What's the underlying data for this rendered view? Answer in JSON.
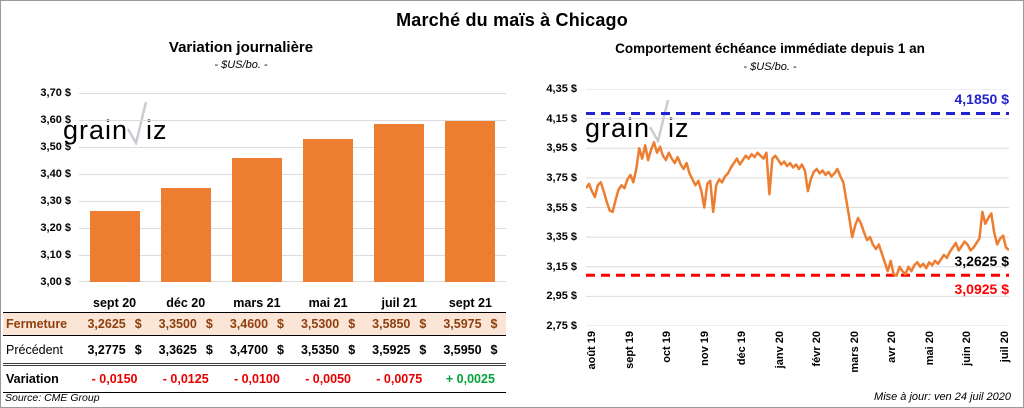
{
  "page": {
    "title": "Marché du maïs à Chicago",
    "source_note": "Source: CME Group",
    "update_note": "Mise à jour: ven 24 juil 2020",
    "watermark": {
      "part1": "grain",
      "part2": "iz"
    }
  },
  "colors": {
    "accent_orange": "#ED7D31",
    "blue_line": "#2222CE",
    "red_line": "#FF0000",
    "negative": "#E60000",
    "positive": "#00A43B",
    "fermeture_bg": "#FBE5D6",
    "fermeture_text": "#8F3F0E",
    "grid": "#DCDCDC",
    "watermark": "#C9CDD2"
  },
  "chart_data": [
    {
      "type": "bar",
      "title": "Variation journalière",
      "subtitle": "- $US/bo. -",
      "categories": [
        "sept 20",
        "déc 20",
        "mars 21",
        "mai 21",
        "juil 21",
        "sept 21"
      ],
      "values": [
        3.2625,
        3.35,
        3.46,
        3.53,
        3.585,
        3.5975
      ],
      "ylim": [
        3.0,
        3.7
      ],
      "ytick_step": 0.1,
      "ytick_labels": [
        "3,70 $",
        "3,60 $",
        "3,50 $",
        "3,40 $",
        "3,30 $",
        "3,20 $",
        "3,10 $",
        "3,00 $"
      ],
      "grid": true,
      "legend": "none"
    },
    {
      "type": "line",
      "title": "Comportement échéance immédiate depuis 1 an",
      "subtitle": "- $US/bo. -",
      "x_labels": [
        "août 19",
        "sept 19",
        "oct 19",
        "nov 19",
        "déc 19",
        "janv 20",
        "févr 20",
        "mars 20",
        "avr 20",
        "mai 20",
        "juin 20",
        "juil 20"
      ],
      "ylim": [
        2.75,
        4.35
      ],
      "ytick_step": 0.2,
      "ytick_labels": [
        "4,35 $",
        "4,15 $",
        "3,95 $",
        "3,75 $",
        "3,55 $",
        "3,35 $",
        "3,15 $",
        "2,95 $",
        "2,75 $"
      ],
      "grid": true,
      "legend": "none",
      "values": [
        3.68,
        3.71,
        3.66,
        3.62,
        3.7,
        3.72,
        3.66,
        3.59,
        3.53,
        3.52,
        3.6,
        3.67,
        3.7,
        3.68,
        3.74,
        3.77,
        3.72,
        3.81,
        3.95,
        3.88,
        3.97,
        3.87,
        3.94,
        3.99,
        3.92,
        3.96,
        3.9,
        3.87,
        3.92,
        3.88,
        3.85,
        3.89,
        3.84,
        3.81,
        3.85,
        3.78,
        3.74,
        3.7,
        3.73,
        3.66,
        3.55,
        3.71,
        3.73,
        3.52,
        3.7,
        3.74,
        3.72,
        3.76,
        3.78,
        3.82,
        3.85,
        3.88,
        3.84,
        3.87,
        3.9,
        3.88,
        3.91,
        3.89,
        3.92,
        3.9,
        3.88,
        3.92,
        3.64,
        3.88,
        3.9,
        3.87,
        3.84,
        3.86,
        3.83,
        3.85,
        3.82,
        3.84,
        3.81,
        3.84,
        3.8,
        3.66,
        3.74,
        3.79,
        3.81,
        3.78,
        3.8,
        3.77,
        3.79,
        3.76,
        3.78,
        3.81,
        3.76,
        3.72,
        3.6,
        3.48,
        3.35,
        3.43,
        3.48,
        3.44,
        3.38,
        3.33,
        3.35,
        3.3,
        3.27,
        3.3,
        3.24,
        3.18,
        3.12,
        3.19,
        3.1,
        3.09,
        3.15,
        3.12,
        3.1,
        3.15,
        3.12,
        3.16,
        3.18,
        3.15,
        3.17,
        3.14,
        3.18,
        3.16,
        3.19,
        3.17,
        3.2,
        3.23,
        3.21,
        3.25,
        3.28,
        3.31,
        3.26,
        3.29,
        3.32,
        3.3,
        3.26,
        3.28,
        3.31,
        3.34,
        3.52,
        3.44,
        3.48,
        3.51,
        3.38,
        3.3,
        3.34,
        3.36,
        3.28,
        3.2625
      ],
      "hlines": [
        {
          "value": 4.185,
          "label": "4,1850 $",
          "color": "#2222CE",
          "style": "dashed"
        },
        {
          "value": 3.0925,
          "label": "3,0925 $",
          "color": "#FF0000",
          "style": "dashed"
        }
      ],
      "last_label": {
        "text": "3,2625 $",
        "value": 3.2625,
        "color": "#000000"
      }
    }
  ],
  "table": {
    "rows": [
      {
        "label": "Fermeture",
        "style": "fermeture",
        "suffix": "$",
        "values": [
          "3,2625",
          "3,3500",
          "3,4600",
          "3,5300",
          "3,5850",
          "3,5975"
        ]
      },
      {
        "label": "Précédent",
        "style": "precedent",
        "suffix": "$",
        "values": [
          "3,2775",
          "3,3625",
          "3,4700",
          "3,5350",
          "3,5925",
          "3,5950"
        ]
      },
      {
        "label": "Variation",
        "style": "variation",
        "suffix": "",
        "values": [
          "- 0,0150",
          "- 0,0125",
          "- 0,0100",
          "- 0,0050",
          "- 0,0075",
          "+ 0,0025"
        ],
        "value_signs": [
          "neg",
          "neg",
          "neg",
          "neg",
          "neg",
          "pos"
        ]
      }
    ]
  }
}
